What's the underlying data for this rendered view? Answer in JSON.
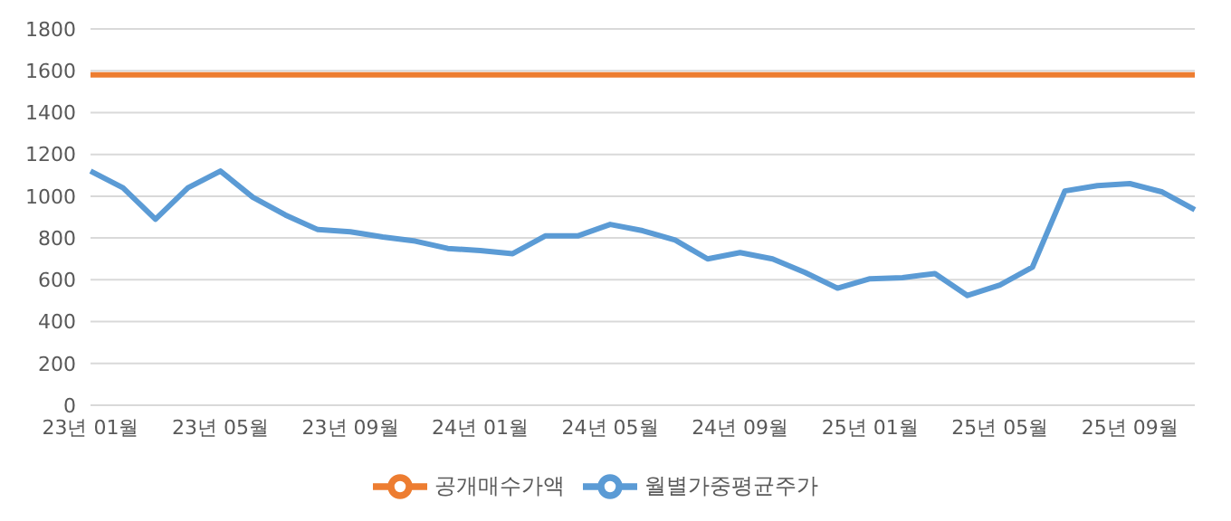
{
  "chart_data": {
    "type": "line",
    "categories": [
      "23년 01월",
      null,
      null,
      null,
      "23년 05월",
      null,
      null,
      null,
      "23년 09월",
      null,
      null,
      null,
      "24년 01월",
      null,
      null,
      null,
      "24년 05월",
      null,
      null,
      null,
      "24년 09월",
      null,
      null,
      null,
      "25년 01월",
      null,
      null,
      null,
      "25년 05월",
      null,
      null,
      null,
      "25년 09월",
      null,
      null
    ],
    "series": [
      {
        "name": "월별가중평균주가",
        "color": "#5b9bd5",
        "values": [
          1120,
          1040,
          890,
          1040,
          1120,
          995,
          910,
          840,
          830,
          805,
          785,
          750,
          740,
          725,
          810,
          810,
          865,
          835,
          790,
          700,
          730,
          700,
          635,
          560,
          605,
          610,
          630,
          525,
          575,
          660,
          1025,
          1050,
          1060,
          1020,
          935
        ]
      },
      {
        "name": "공개매수가액",
        "color": "#ed7d31",
        "values": [
          1580,
          1580,
          1580,
          1580,
          1580,
          1580,
          1580,
          1580,
          1580,
          1580,
          1580,
          1580,
          1580,
          1580,
          1580,
          1580,
          1580,
          1580,
          1580,
          1580,
          1580,
          1580,
          1580,
          1580,
          1580,
          1580,
          1580,
          1580,
          1580,
          1580,
          1580,
          1580,
          1580,
          1580,
          1580
        ]
      }
    ],
    "ylim": [
      0,
      1800
    ],
    "yticks": [
      0,
      200,
      400,
      600,
      800,
      1000,
      1200,
      1400,
      1600,
      1800
    ],
    "grid": "y",
    "legend": "bottom",
    "marker": "none",
    "line_style": "solid"
  }
}
